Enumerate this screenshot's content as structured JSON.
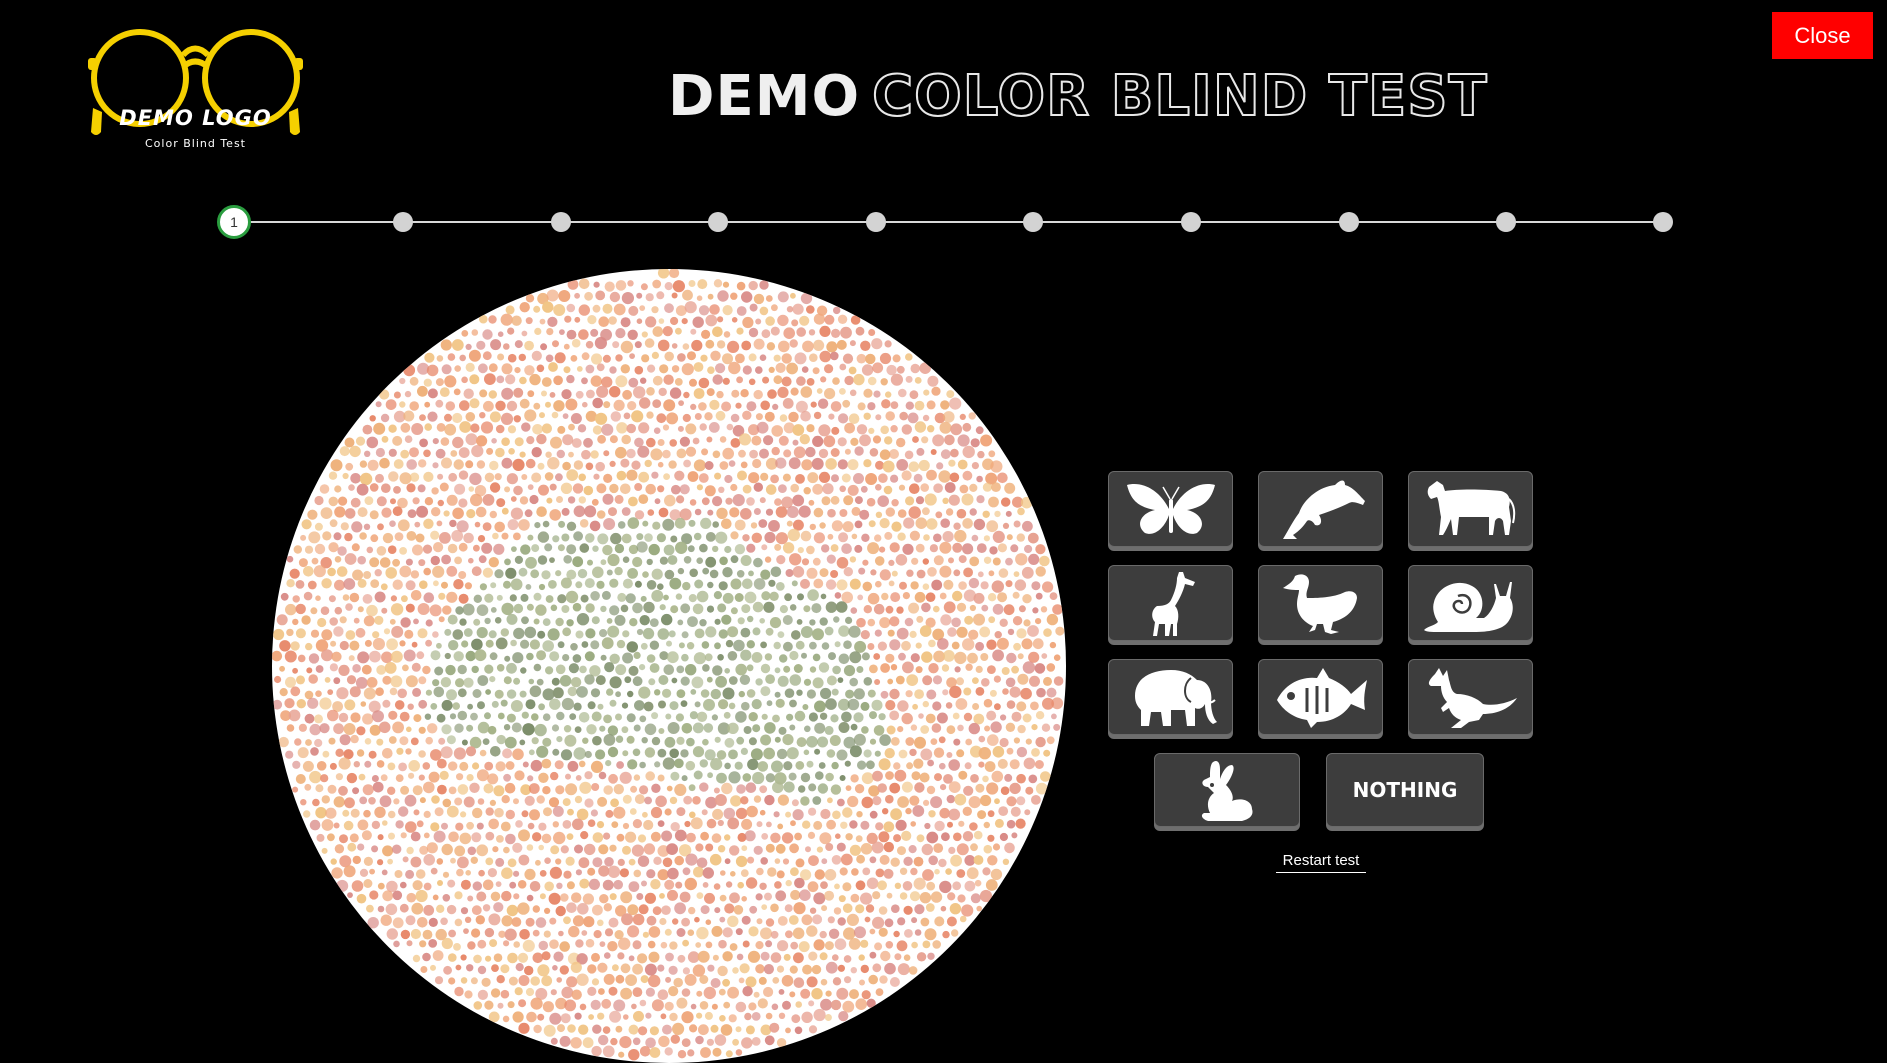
{
  "header": {
    "close_label": "Close",
    "logo": {
      "text": "DEMO LOGO",
      "subtitle": "Color Blind Test",
      "color": "#f5d000"
    },
    "title_solid": "DEMO",
    "title_outline": "COLOR BLIND TEST"
  },
  "progress": {
    "total_steps": 10,
    "current_step": 1,
    "current_label": "1",
    "active_color": "#2a9d3f"
  },
  "plate": {
    "pattern": "dot-pattern color plate",
    "figure_colors": [
      "#8a9876",
      "#9aaa80",
      "#7e8f6c",
      "#a7b48a",
      "#b0ba92"
    ],
    "background_colors": [
      "#e88a6c",
      "#efb27c",
      "#e7a090",
      "#f1c586",
      "#d98a86",
      "#f0a77c"
    ]
  },
  "answers": {
    "options": [
      {
        "name": "butterfly",
        "icon": "butterfly-icon"
      },
      {
        "name": "dolphin",
        "icon": "dolphin-icon"
      },
      {
        "name": "cow",
        "icon": "cow-icon"
      },
      {
        "name": "giraffe",
        "icon": "giraffe-icon"
      },
      {
        "name": "duck",
        "icon": "duck-icon"
      },
      {
        "name": "snail",
        "icon": "snail-icon"
      },
      {
        "name": "elephant",
        "icon": "elephant-icon"
      },
      {
        "name": "fish",
        "icon": "fish-icon"
      },
      {
        "name": "kangaroo",
        "icon": "kangaroo-icon"
      },
      {
        "name": "rabbit",
        "icon": "rabbit-icon"
      }
    ],
    "nothing_label": "NOTHING"
  },
  "footer": {
    "restart_label": "Restart test"
  }
}
